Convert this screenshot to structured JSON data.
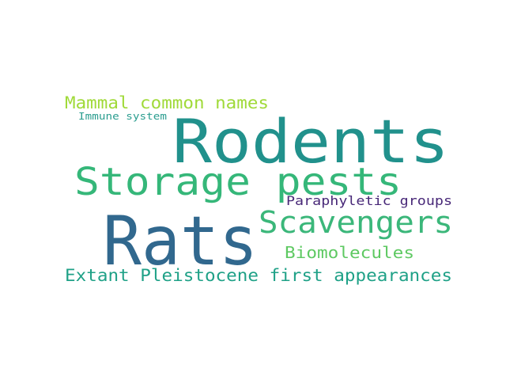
{
  "word_cloud": {
    "words": [
      {
        "text": "Rodents",
        "weight": 1.0,
        "color": "#21918c"
      },
      {
        "text": "Rats",
        "weight": 0.95,
        "color": "#31688e"
      },
      {
        "text": "Storage pests",
        "weight": 0.6,
        "color": "#35b779"
      },
      {
        "text": "Scavengers",
        "weight": 0.5,
        "color": "#3bb77a"
      },
      {
        "text": "Extant Pleistocene first appearances",
        "weight": 0.3,
        "color": "#1fa187"
      },
      {
        "text": "Biomolecules",
        "weight": 0.3,
        "color": "#5ec962"
      },
      {
        "text": "Mammal common names",
        "weight": 0.3,
        "color": "#a0da39"
      },
      {
        "text": "Paraphyletic groups",
        "weight": 0.25,
        "color": "#482878"
      },
      {
        "text": "Immune system",
        "weight": 0.18,
        "color": "#2a9d8f"
      }
    ]
  }
}
